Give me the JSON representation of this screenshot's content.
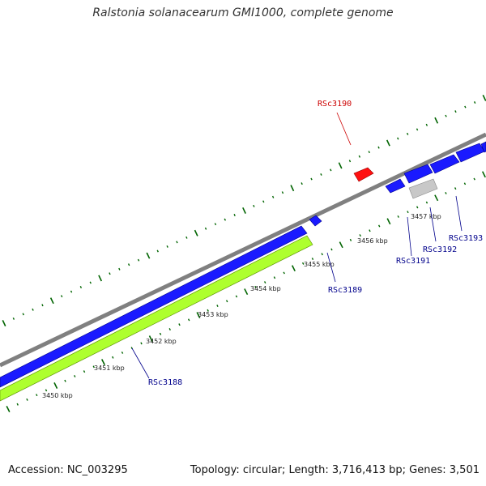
{
  "title": "Ralstonia solanacearum GMI1000, complete genome",
  "footer": {
    "accession": "Accession: NC_003295",
    "topology": "Topology: circular; Length: 3,716,413 bp; Genes: 3,501"
  },
  "colors": {
    "backbone": "#808080",
    "forward_gene": "#0000ff",
    "reverse_gene": "#ff0000",
    "pseudo_gene": "#c0c0c0",
    "gc_band": "#adff2f",
    "tick": "#006400",
    "label_blue": "#00008b",
    "label_red": "#cc0000"
  },
  "ruler_labels": [
    "3450 kbp",
    "3451 kbp",
    "3452 kbp",
    "3453 kbp",
    "3454 kbp",
    "3455 kbp",
    "3456 kbp",
    "3457 kbp"
  ],
  "gene_labels": [
    {
      "text": "RSc3188",
      "color": "#00008b"
    },
    {
      "text": "RSc3189",
      "color": "#00008b"
    },
    {
      "text": "RSc3190",
      "color": "#cc0000"
    },
    {
      "text": "RSc3191",
      "color": "#00008b"
    },
    {
      "text": "RSc3192",
      "color": "#00008b"
    },
    {
      "text": "RSc3193",
      "color": "#00008b"
    }
  ]
}
